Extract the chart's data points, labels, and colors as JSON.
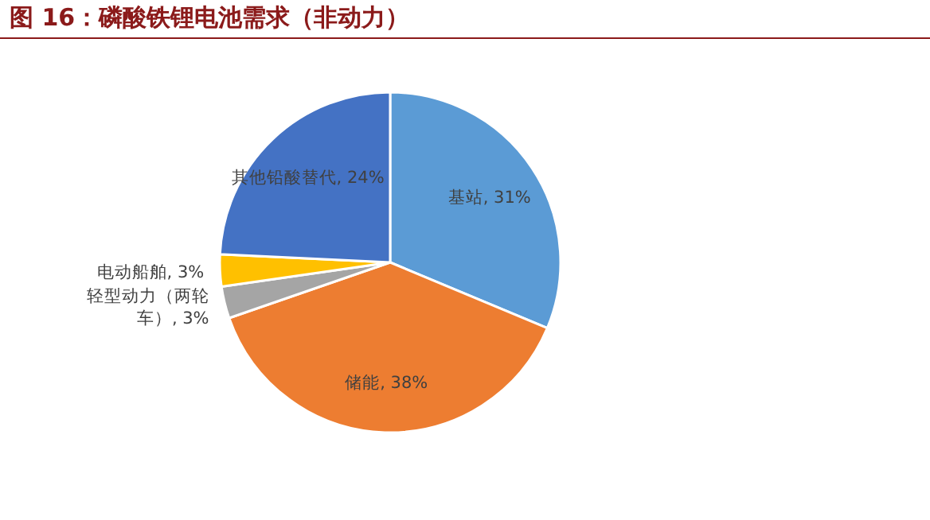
{
  "chart_data": {
    "type": "pie",
    "title": "图 16：磷酸铁锂电池需求（非动力）",
    "categories": [
      "基站",
      "储能",
      "轻型动力（两轮车）",
      "电动船舶",
      "其他铅酸替代"
    ],
    "values": [
      31,
      38,
      3,
      3,
      24
    ],
    "colors": [
      "#5b9bd5",
      "#ed7d31",
      "#a5a5a5",
      "#ffc000",
      "#4472c4"
    ],
    "value_labels": [
      "31%",
      "38%",
      "3%",
      "3%",
      "24%"
    ]
  }
}
